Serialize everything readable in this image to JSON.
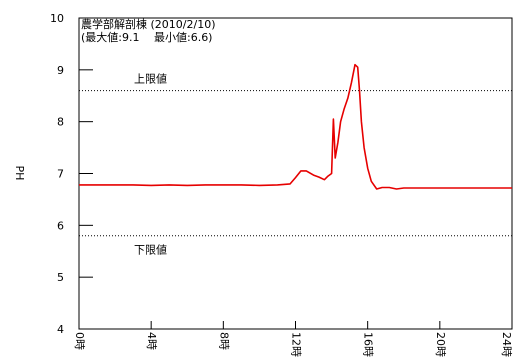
{
  "chart_data": {
    "type": "line",
    "title": "農学部解剖棟 (2010/2/10)",
    "subtitle": "(最大値:9.1　 最小値:6.6)",
    "xlabel": "",
    "ylabel": "PH",
    "xlim": [
      0,
      24
    ],
    "ylim": [
      4,
      10
    ],
    "x_ticks": [
      {
        "value": 0,
        "label": "0時"
      },
      {
        "value": 4,
        "label": "4時"
      },
      {
        "value": 8,
        "label": "8時"
      },
      {
        "value": 12,
        "label": "12時"
      },
      {
        "value": 16,
        "label": "16時"
      },
      {
        "value": 20,
        "label": "20時"
      },
      {
        "value": 24,
        "label": "24時"
      }
    ],
    "y_ticks": [
      4,
      5,
      6,
      7,
      8,
      9,
      10
    ],
    "grid": false,
    "reference_lines": [
      {
        "value": 8.6,
        "label": "上限値",
        "style": "dotted"
      },
      {
        "value": 5.8,
        "label": "下限値",
        "style": "dotted"
      }
    ],
    "series": [
      {
        "color": "#e60000",
        "x": [
          0,
          1,
          2,
          3,
          4,
          5,
          6,
          7,
          8,
          9,
          10,
          11,
          11.7,
          12,
          12.3,
          12.6,
          13,
          13.3,
          13.6,
          13.8,
          14.0,
          14.1,
          14.2,
          14.35,
          14.5,
          14.7,
          14.9,
          15.1,
          15.3,
          15.45,
          15.55,
          15.65,
          15.8,
          16.0,
          16.2,
          16.5,
          16.8,
          17.2,
          17.6,
          18.0,
          19,
          20,
          21,
          22,
          23,
          24
        ],
        "y": [
          6.78,
          6.78,
          6.78,
          6.78,
          6.77,
          6.78,
          6.77,
          6.78,
          6.78,
          6.78,
          6.77,
          6.78,
          6.8,
          6.92,
          7.05,
          7.05,
          6.97,
          6.93,
          6.88,
          6.95,
          7.0,
          8.05,
          7.3,
          7.6,
          8.0,
          8.25,
          8.45,
          8.75,
          9.1,
          9.05,
          8.6,
          8.0,
          7.5,
          7.1,
          6.85,
          6.7,
          6.73,
          6.73,
          6.7,
          6.72,
          6.72,
          6.72,
          6.72,
          6.72,
          6.72,
          6.72
        ]
      }
    ]
  }
}
